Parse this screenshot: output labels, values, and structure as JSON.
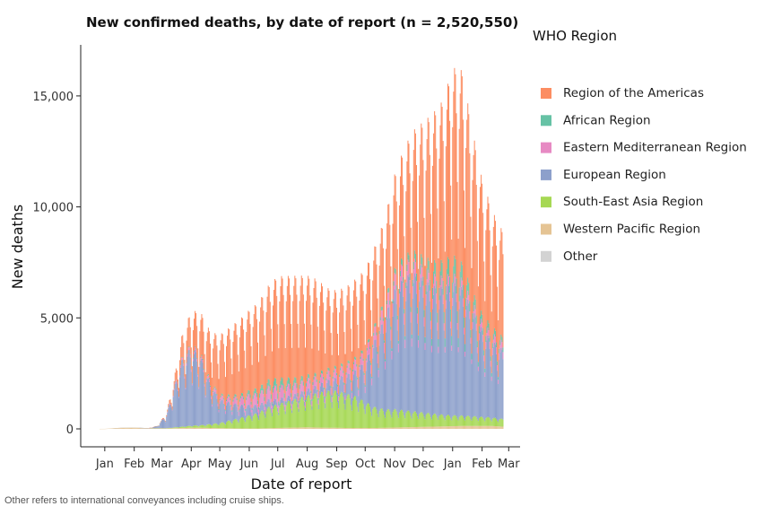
{
  "chart_data": {
    "type": "bar",
    "stacked": true,
    "title": "New confirmed deaths, by date of report (n = 2,520,550)",
    "xlabel": "Date of report",
    "ylabel": "New deaths",
    "ylim": [
      -800,
      17300
    ],
    "yticks": [
      0,
      5000,
      10000,
      15000
    ],
    "ytick_labels": [
      "0",
      "5,000",
      "10,000",
      "15,000"
    ],
    "xlim": [
      "2020-01-01",
      "2021-03-10"
    ],
    "xticks": [
      "2020-01-15",
      "2020-02-15",
      "2020-03-15",
      "2020-04-15",
      "2020-05-15",
      "2020-06-15",
      "2020-07-15",
      "2020-08-15",
      "2020-09-15",
      "2020-10-15",
      "2020-11-15",
      "2020-12-15",
      "2021-01-15",
      "2021-02-15",
      "2021-03-15"
    ],
    "xtick_labels": [
      "Jan",
      "Feb",
      "Mar",
      "Apr",
      "May",
      "Jun",
      "Jul",
      "Aug",
      "Sep",
      "Oct",
      "Nov",
      "Dec",
      "Jan",
      "Feb",
      "Mar"
    ],
    "legend_title": "WHO Region",
    "legend_position": "right",
    "grid": false,
    "footnote": "Other refers to international conveyances including cruise ships.",
    "x": [
      "2020-01-01",
      "2020-01-15",
      "2020-02-01",
      "2020-02-15",
      "2020-03-01",
      "2020-03-10",
      "2020-03-20",
      "2020-03-28",
      "2020-04-05",
      "2020-04-15",
      "2020-04-25",
      "2020-05-05",
      "2020-05-15",
      "2020-05-25",
      "2020-06-05",
      "2020-06-15",
      "2020-06-25",
      "2020-07-05",
      "2020-07-15",
      "2020-07-25",
      "2020-08-05",
      "2020-08-15",
      "2020-08-25",
      "2020-09-05",
      "2020-09-15",
      "2020-09-25",
      "2020-10-05",
      "2020-10-15",
      "2020-10-25",
      "2020-11-05",
      "2020-11-15",
      "2020-11-25",
      "2020-12-05",
      "2020-12-15",
      "2020-12-25",
      "2021-01-05",
      "2021-01-15",
      "2021-01-25",
      "2021-02-05",
      "2021-02-15",
      "2021-02-25",
      "2021-03-05",
      "2021-03-09"
    ],
    "series": [
      {
        "name": "Western Pacific Region",
        "color": "#e5c494",
        "values": [
          0,
          2,
          50,
          60,
          30,
          25,
          20,
          30,
          40,
          50,
          50,
          40,
          30,
          25,
          20,
          20,
          20,
          30,
          40,
          50,
          60,
          70,
          60,
          50,
          50,
          40,
          40,
          40,
          40,
          50,
          60,
          70,
          80,
          90,
          100,
          110,
          120,
          130,
          130,
          130,
          130,
          110,
          100
        ]
      },
      {
        "name": "South-East Asia Region",
        "color": "#a6d854",
        "values": [
          0,
          0,
          0,
          0,
          0,
          3,
          10,
          30,
          50,
          80,
          100,
          150,
          200,
          300,
          400,
          500,
          600,
          800,
          900,
          1000,
          1100,
          1200,
          1300,
          1400,
          1400,
          1300,
          1200,
          1000,
          800,
          700,
          700,
          650,
          600,
          550,
          500,
          450,
          420,
          400,
          380,
          350,
          330,
          300,
          300
        ]
      },
      {
        "name": "European Region",
        "color": "#8da0cb",
        "values": [
          0,
          0,
          0,
          0,
          2,
          80,
          500,
          1500,
          2500,
          3000,
          2600,
          1500,
          900,
          700,
          500,
          400,
          300,
          300,
          200,
          200,
          200,
          250,
          300,
          400,
          500,
          700,
          1000,
          1500,
          2500,
          3500,
          4500,
          5000,
          5200,
          5000,
          4800,
          4800,
          5000,
          4800,
          4000,
          3300,
          2900,
          2700,
          2600
        ]
      },
      {
        "name": "Eastern Mediterranean Region",
        "color": "#e78ac3",
        "values": [
          0,
          0,
          0,
          0,
          0,
          5,
          30,
          50,
          80,
          100,
          100,
          120,
          150,
          200,
          300,
          400,
          450,
          500,
          500,
          450,
          400,
          400,
          350,
          350,
          350,
          400,
          400,
          450,
          500,
          550,
          600,
          600,
          550,
          500,
          450,
          400,
          350,
          350,
          300,
          300,
          300,
          300,
          300
        ]
      },
      {
        "name": "African Region",
        "color": "#66c2a5",
        "values": [
          0,
          0,
          0,
          0,
          0,
          1,
          5,
          10,
          20,
          30,
          40,
          50,
          60,
          80,
          100,
          150,
          200,
          250,
          300,
          250,
          200,
          150,
          120,
          100,
          100,
          100,
          100,
          100,
          120,
          150,
          200,
          250,
          300,
          400,
          500,
          600,
          700,
          600,
          400,
          300,
          250,
          200,
          200
        ]
      },
      {
        "name": "Region of the Americas",
        "color": "#fc8d62",
        "values": [
          0,
          0,
          0,
          0,
          0,
          5,
          50,
          300,
          800,
          1200,
          1500,
          1800,
          2200,
          2500,
          2800,
          3000,
          3200,
          3500,
          3800,
          3800,
          3800,
          3700,
          3500,
          3000,
          2800,
          2800,
          2900,
          2900,
          2900,
          3000,
          3500,
          4000,
          4500,
          5000,
          5500,
          6000,
          7000,
          7200,
          6000,
          5000,
          4400,
          4000,
          4000
        ]
      },
      {
        "name": "Other",
        "color": "#d3d3d3",
        "values": [
          0,
          0,
          1,
          1,
          1,
          0,
          0,
          0,
          0,
          0,
          0,
          0,
          0,
          0,
          0,
          0,
          0,
          0,
          0,
          0,
          0,
          0,
          0,
          0,
          0,
          0,
          0,
          0,
          0,
          0,
          0,
          0,
          0,
          0,
          0,
          0,
          0,
          0,
          0,
          0,
          0,
          0,
          0
        ]
      }
    ],
    "legend_order": [
      "Region of the Americas",
      "African Region",
      "Eastern Mediterranean Region",
      "European Region",
      "South-East Asia Region",
      "Western Pacific Region",
      "Other"
    ]
  }
}
